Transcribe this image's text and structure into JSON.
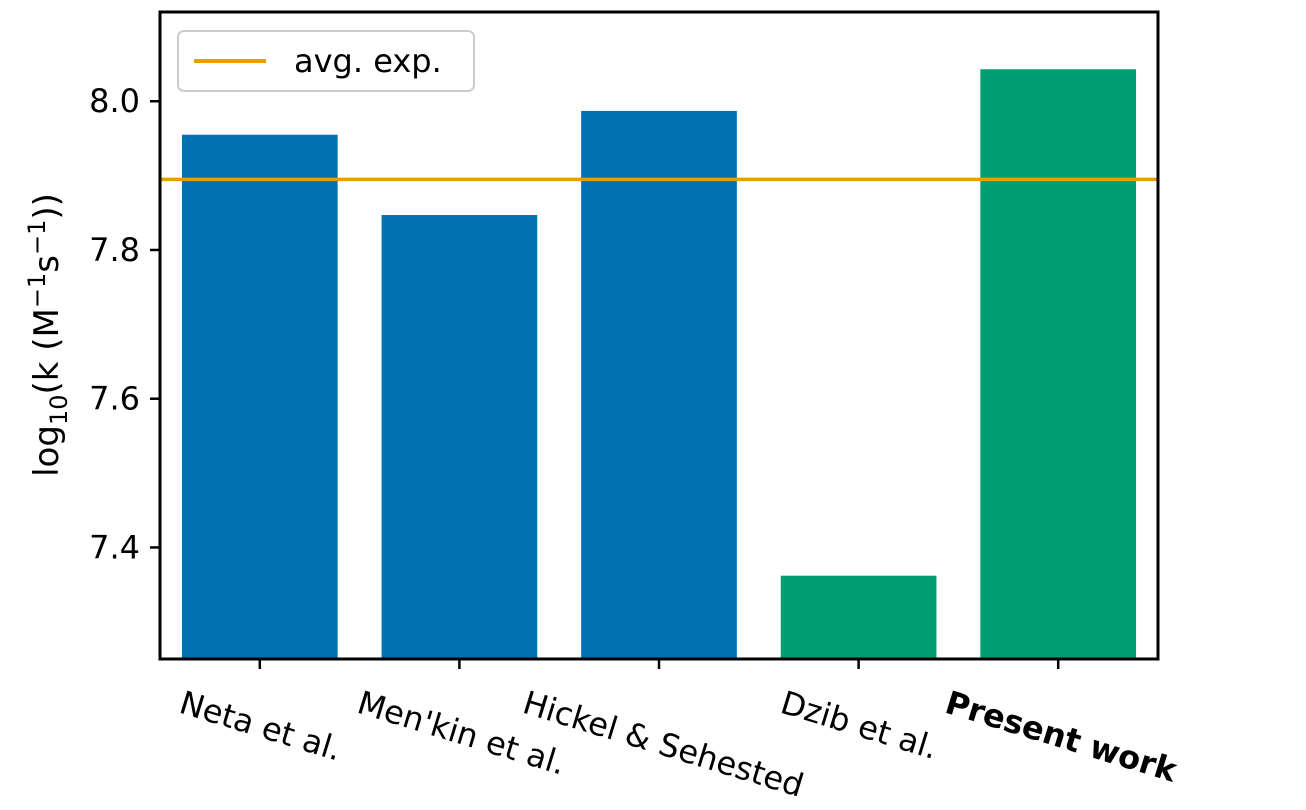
{
  "chart_data": {
    "type": "bar",
    "title": "",
    "categories": [
      "Neta et al.",
      "Men'kin et al.",
      "Hickel & Sehested",
      "Dzib et al.",
      "Present work"
    ],
    "category_bold": [
      false,
      false,
      false,
      false,
      true
    ],
    "values": [
      7.955,
      7.847,
      7.987,
      7.362,
      8.043
    ],
    "bar_colors": [
      "#0072b2",
      "#0072b2",
      "#0072b2",
      "#009e73",
      "#009e73"
    ],
    "ylabel": {
      "base": "log",
      "sub": "10",
      "open": "(k (M",
      "sup1": "−1",
      "mid": "s",
      "sup2": "−1",
      "close": "))"
    },
    "xlabel": "",
    "ylim": [
      7.25,
      8.12
    ],
    "yticks": [
      7.4,
      7.6,
      7.8,
      8.0
    ],
    "ytick_labels": [
      "7.4",
      "7.6",
      "7.8",
      "8.0"
    ],
    "reference_line": {
      "label": "avg. exp.",
      "value": 7.895,
      "color": "#e69f00"
    },
    "legend_position": "upper left",
    "grid": false
  }
}
